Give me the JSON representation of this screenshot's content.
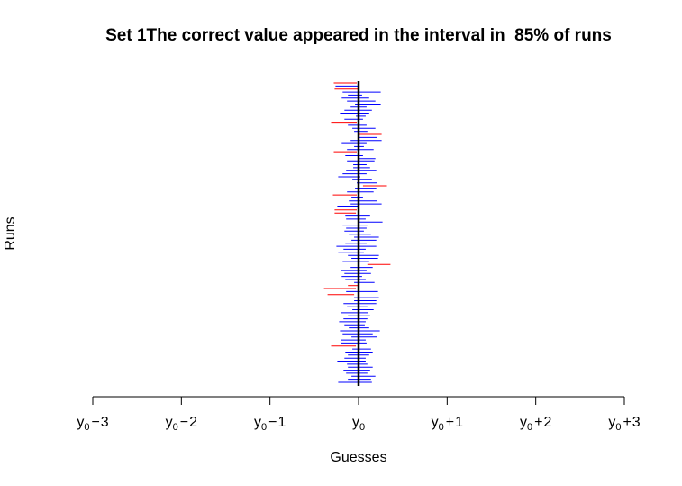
{
  "chart_data": {
    "type": "interval",
    "title": "Set 1The correct value appeared in the interval in  85% of runs",
    "xlabel": "Guesses",
    "ylabel": "Runs",
    "x_ticks": [
      {
        "value": -3,
        "base": "y",
        "sub": "0",
        "op": "−",
        "num": "3"
      },
      {
        "value": -2,
        "base": "y",
        "sub": "0",
        "op": "−",
        "num": "2"
      },
      {
        "value": -1,
        "base": "y",
        "sub": "0",
        "op": "−",
        "num": "1"
      },
      {
        "value": 0,
        "base": "y",
        "sub": "0",
        "op": "",
        "num": ""
      },
      {
        "value": 1,
        "base": "y",
        "sub": "0",
        "op": "+",
        "num": "1"
      },
      {
        "value": 2,
        "base": "y",
        "sub": "0",
        "op": "+",
        "num": "2"
      },
      {
        "value": 3,
        "base": "y",
        "sub": "0",
        "op": "+",
        "num": "3"
      }
    ],
    "xlim": [
      -3,
      3
    ],
    "true_value": 0,
    "coverage_percent": 85,
    "colors": {
      "contains_true": "#0000ff",
      "misses_true": "#ff0000",
      "true_line": "#000000"
    },
    "intervals": [
      [
        -0.28,
        -0.02
      ],
      [
        -0.26,
        0.0
      ],
      [
        -0.27,
        -0.01
      ],
      [
        -0.18,
        0.25
      ],
      [
        -0.12,
        0.04
      ],
      [
        -0.19,
        0.12
      ],
      [
        -0.13,
        0.19
      ],
      [
        -0.04,
        0.25
      ],
      [
        -0.09,
        0.09
      ],
      [
        -0.16,
        0.15
      ],
      [
        -0.21,
        0.12
      ],
      [
        -0.03,
        0.08
      ],
      [
        -0.16,
        0.05
      ],
      [
        -0.31,
        -0.02
      ],
      [
        -0.12,
        0.09
      ],
      [
        -0.07,
        0.19
      ],
      [
        -0.05,
        0.1
      ],
      [
        0.01,
        0.26
      ],
      [
        0.0,
        0.21
      ],
      [
        -0.09,
        0.26
      ],
      [
        -0.19,
        0.09
      ],
      [
        -0.05,
        0.06
      ],
      [
        -0.13,
        0.17
      ],
      [
        -0.28,
        -0.02
      ],
      [
        -0.15,
        0.05
      ],
      [
        -0.01,
        0.19
      ],
      [
        -0.13,
        0.18
      ],
      [
        -0.06,
        0.09
      ],
      [
        -0.06,
        0.13
      ],
      [
        -0.14,
        0.2
      ],
      [
        -0.18,
        0.09
      ],
      [
        -0.23,
        0.02
      ],
      [
        -0.07,
        0.15
      ],
      [
        -0.02,
        0.21
      ],
      [
        0.05,
        0.32
      ],
      [
        -0.04,
        0.2
      ],
      [
        -0.13,
        0.17
      ],
      [
        -0.29,
        -0.02
      ],
      [
        -0.08,
        0.05
      ],
      [
        -0.11,
        0.21
      ],
      [
        -0.09,
        0.26
      ],
      [
        -0.24,
        0.01
      ],
      [
        -0.27,
        -0.02
      ],
      [
        -0.27,
        -0.03
      ],
      [
        -0.15,
        0.13
      ],
      [
        -0.14,
        0.08
      ],
      [
        0.0,
        0.27
      ],
      [
        -0.18,
        0.1
      ],
      [
        -0.14,
        0.09
      ],
      [
        -0.16,
        0.06
      ],
      [
        -0.11,
        0.14
      ],
      [
        -0.05,
        0.23
      ],
      [
        -0.08,
        0.2
      ],
      [
        -0.15,
        0.09
      ],
      [
        -0.25,
        0.2
      ],
      [
        -0.17,
        0.08
      ],
      [
        -0.23,
        0.06
      ],
      [
        -0.12,
        0.23
      ],
      [
        -0.08,
        0.22
      ],
      [
        -0.18,
        0.12
      ],
      [
        0.1,
        0.36
      ],
      [
        -0.09,
        0.16
      ],
      [
        -0.2,
        0.09
      ],
      [
        -0.16,
        0.14
      ],
      [
        -0.19,
        0.04
      ],
      [
        -0.15,
        0.08
      ],
      [
        -0.05,
        0.18
      ],
      [
        -0.12,
        -0.01
      ],
      [
        -0.39,
        -0.03
      ],
      [
        -0.14,
        0.22
      ],
      [
        -0.35,
        -0.05
      ],
      [
        -0.05,
        0.23
      ],
      [
        -0.05,
        0.2
      ],
      [
        -0.17,
        0.2
      ],
      [
        -0.13,
        0.1
      ],
      [
        -0.07,
        0.17
      ],
      [
        -0.2,
        0.11
      ],
      [
        -0.12,
        0.13
      ],
      [
        -0.17,
        0.1
      ],
      [
        -0.22,
        0.08
      ],
      [
        -0.16,
        0.07
      ],
      [
        -0.11,
        0.12
      ],
      [
        -0.21,
        0.24
      ],
      [
        -0.18,
        0.16
      ],
      [
        -0.08,
        0.21
      ],
      [
        -0.2,
        0.08
      ],
      [
        -0.2,
        0.09
      ],
      [
        -0.31,
        -0.03
      ],
      [
        -0.07,
        0.14
      ],
      [
        -0.15,
        0.16
      ],
      [
        -0.12,
        0.12
      ],
      [
        -0.16,
        0.08
      ],
      [
        -0.24,
        0.08
      ],
      [
        -0.13,
        0.1
      ],
      [
        -0.12,
        0.16
      ],
      [
        -0.17,
        0.13
      ],
      [
        -0.14,
        0.1
      ],
      [
        -0.08,
        0.19
      ],
      [
        -0.12,
        0.14
      ],
      [
        -0.23,
        0.15
      ]
    ]
  }
}
